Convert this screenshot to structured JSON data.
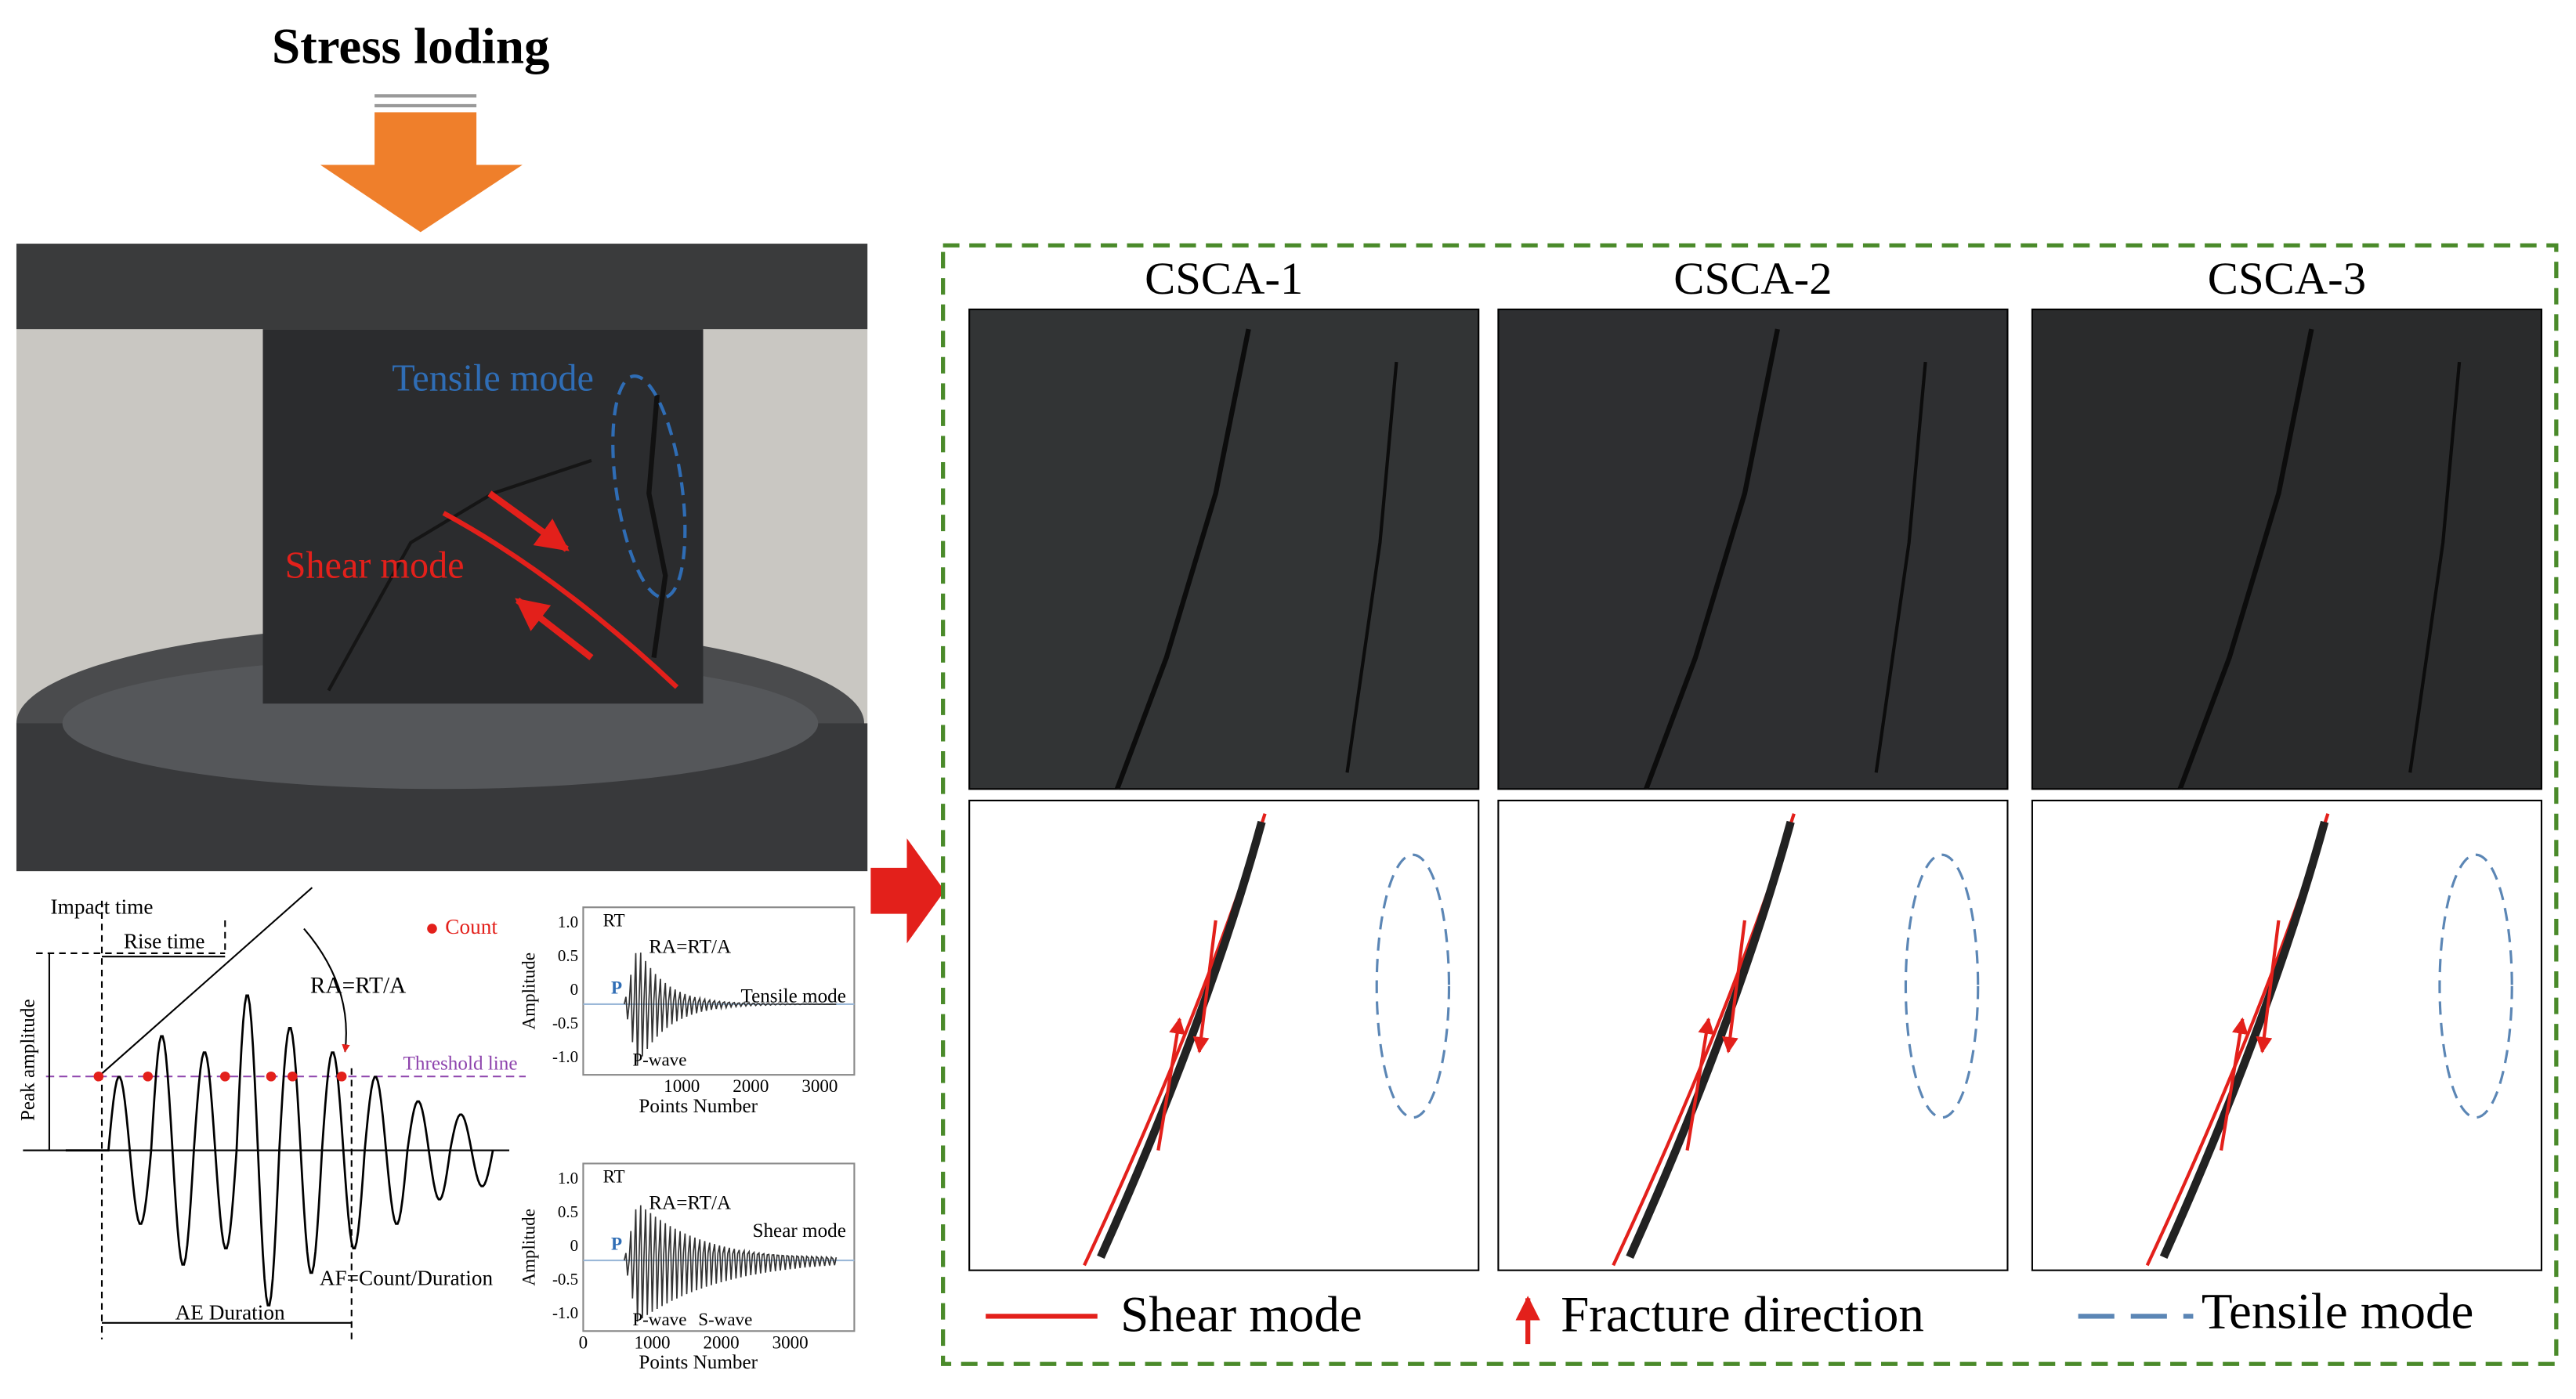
{
  "header": {
    "title": "Stress loding"
  },
  "photo": {
    "tensile_label": "Tensile mode",
    "shear_label": "Shear mode"
  },
  "waveform": {
    "impact_time": "Impact time",
    "rise_time": "Rise time",
    "ra": "RA=RT/A",
    "count": "Count",
    "peak_amplitude": "Peak amplitude",
    "threshold": "Threshold line",
    "af": "AF=Count/Duration",
    "duration": "AE Duration"
  },
  "insets": [
    {
      "rt": "RT",
      "ra": "RA=RT/A",
      "mode": "Tensile mode",
      "p": "P",
      "waves": [
        "P-wave"
      ],
      "ylabel": "Amplitude",
      "xlabel": "Points Number",
      "yticks": [
        "1.0",
        "0.5",
        "0",
        "-0.5",
        "-1.0"
      ],
      "xticks": [
        "1000",
        "2000",
        "3000"
      ]
    },
    {
      "rt": "RT",
      "ra": "RA=RT/A",
      "mode": "Shear mode",
      "p": "P",
      "waves": [
        "P-wave",
        "S-wave"
      ],
      "ylabel": "Amplitude",
      "xlabel": "Points Number",
      "yticks": [
        "1.0",
        "0.5",
        "0",
        "-0.5",
        "-1.0"
      ],
      "xticks": [
        "0",
        "1000",
        "2000",
        "3000"
      ]
    }
  ],
  "panel": {
    "titles": [
      "CSCA-1",
      "CSCA-2",
      "CSCA-3"
    ],
    "legend": [
      "Shear mode",
      "Fracture direction",
      "Tensile mode"
    ]
  }
}
